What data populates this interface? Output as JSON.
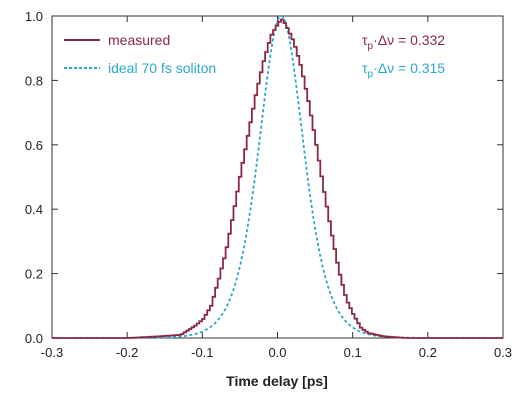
{
  "chart_data": {
    "type": "line",
    "title": "",
    "xlabel": "Time delay [ps]",
    "ylabel": "",
    "xlim": [
      -0.3,
      0.3
    ],
    "ylim": [
      0.0,
      1.0
    ],
    "x_ticks": [
      -0.3,
      -0.2,
      -0.1,
      0.0,
      0.1,
      0.2,
      0.3
    ],
    "x_tick_labels": [
      "-0.3",
      "-0.2",
      "-0.1",
      "0.0",
      "0.1",
      "0.2",
      "0.3"
    ],
    "y_ticks": [
      0.0,
      0.2,
      0.4,
      0.6,
      0.8,
      1.0
    ],
    "y_tick_labels": [
      "0.0",
      "0.2",
      "0.4",
      "0.6",
      "0.8",
      "1.0"
    ],
    "grid": false,
    "legend_position": "top-left",
    "series": [
      {
        "name": "measured",
        "color": "#8b2942",
        "style": "solid-step",
        "x": [
          -0.3,
          -0.25,
          -0.2,
          -0.16,
          -0.13,
          -0.11,
          -0.1,
          -0.09,
          -0.08,
          -0.07,
          -0.06,
          -0.05,
          -0.04,
          -0.03,
          -0.02,
          -0.01,
          0.0,
          0.005,
          0.01,
          0.02,
          0.03,
          0.04,
          0.05,
          0.06,
          0.07,
          0.08,
          0.09,
          0.1,
          0.11,
          0.12,
          0.14,
          0.17,
          0.2,
          0.25,
          0.3
        ],
        "y": [
          0.0,
          0.0,
          0.0,
          0.005,
          0.01,
          0.04,
          0.06,
          0.1,
          0.18,
          0.27,
          0.39,
          0.52,
          0.64,
          0.76,
          0.86,
          0.94,
          0.98,
          0.99,
          0.97,
          0.92,
          0.84,
          0.73,
          0.6,
          0.46,
          0.33,
          0.21,
          0.12,
          0.07,
          0.03,
          0.015,
          0.005,
          0.0,
          0.0,
          0.0,
          0.0
        ]
      },
      {
        "name": "ideal 70 fs soliton",
        "color": "#29a9cf",
        "style": "dashed",
        "function": "sech2",
        "center": 0.005,
        "fwhm": 0.07
      }
    ],
    "annotations": [
      {
        "symbol": "τ",
        "subscript": "p",
        "text": "·Δν = 0.332",
        "color": "#8b2942"
      },
      {
        "symbol": "τ",
        "subscript": "p",
        "text": "·Δν = 0.315",
        "color": "#29a9cf"
      }
    ]
  }
}
